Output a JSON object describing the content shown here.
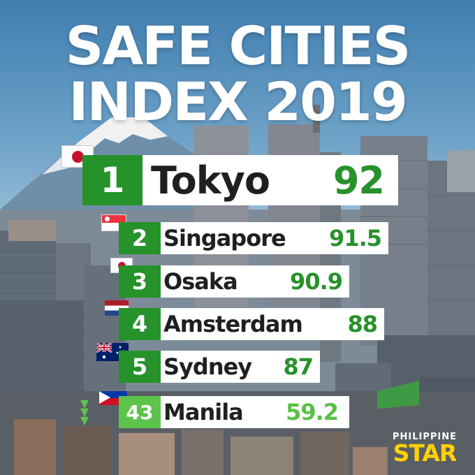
{
  "title": {
    "line1": "SAFE CITIES",
    "line2": "INDEX 2019"
  },
  "rankings": [
    {
      "rank": "1",
      "city": "Tokyo",
      "score": "92",
      "flag_icon": "japan-flag-icon"
    },
    {
      "rank": "2",
      "city": "Singapore",
      "score": "91.5",
      "flag_icon": "singapore-flag-icon"
    },
    {
      "rank": "3",
      "city": "Osaka",
      "score": "90.9",
      "flag_icon": "japan-flag-icon"
    },
    {
      "rank": "4",
      "city": "Amsterdam",
      "score": "88",
      "flag_icon": "netherlands-flag-icon"
    },
    {
      "rank": "5",
      "city": "Sydney",
      "score": "87",
      "flag_icon": "australia-flag-icon"
    },
    {
      "rank": "43",
      "city": "Manila",
      "score": "59.2",
      "flag_icon": "philippines-flag-icon"
    }
  ],
  "logo": {
    "top": "PHILIPPINE",
    "main": "STAR"
  },
  "colors": {
    "dark_green": "#26922a",
    "light_green": "#5cc34b",
    "logo_yellow": "#ffd200",
    "title_white": "#ffffff"
  }
}
